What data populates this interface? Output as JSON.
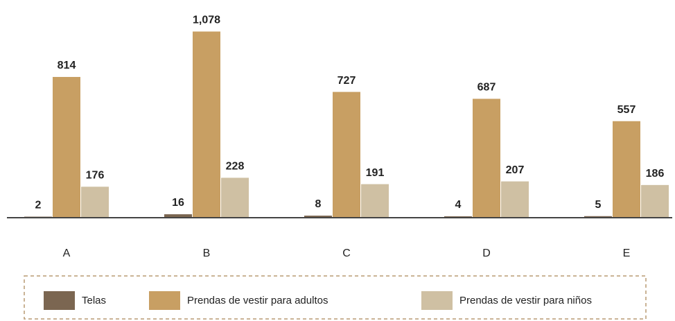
{
  "chart_data": {
    "type": "bar",
    "categories": [
      "A",
      "B",
      "C",
      "D",
      "E"
    ],
    "series": [
      {
        "name": "Telas",
        "color": "#7b6651",
        "values": [
          2,
          16,
          8,
          4,
          5
        ]
      },
      {
        "name": "Prendas de vestir para adultos",
        "color": "#c89f63",
        "values": [
          814,
          1078,
          727,
          687,
          557
        ],
        "value_labels": [
          "814",
          "1,078",
          "727",
          "687",
          "557"
        ]
      },
      {
        "name": "Prendas de vestir para niños",
        "color": "#cfc0a3",
        "values": [
          176,
          228,
          191,
          207,
          186
        ]
      }
    ],
    "ylim": [
      0,
      1100
    ]
  }
}
